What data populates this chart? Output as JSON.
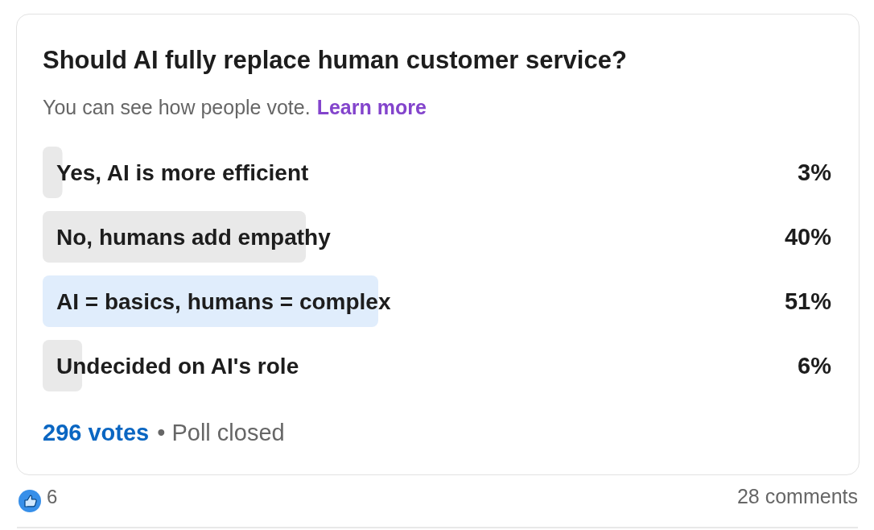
{
  "chart_data": {
    "type": "bar",
    "orientation": "horizontal",
    "title": "Should AI fully replace human customer service?",
    "subtitle": "You can see how people vote.",
    "categories": [
      "Yes, AI is more efficient",
      "No, humans add empathy",
      "AI = basics, humans = complex",
      "Undecided on AI's role"
    ],
    "values": [
      3,
      40,
      51,
      6
    ],
    "colors": [
      "#e9e9e9",
      "#e9e9e9",
      "#e0edfc",
      "#e9e9e9"
    ],
    "value_labels": [
      "3%",
      "40%",
      "51%",
      "6%"
    ],
    "tick_labels": "y",
    "annotations": [
      "Learn more",
      "296 votes",
      "• Poll closed",
      "6",
      "28 comments"
    ]
  }
}
